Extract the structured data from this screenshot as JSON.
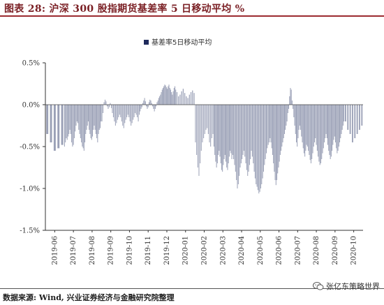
{
  "header": {
    "title": "图表 28:  沪深 300 股指期货基差率 5 日移动平均  %"
  },
  "footer": {
    "source": "数据来源:  Wind, 兴业证券经济与金融研究院整理"
  },
  "watermark": {
    "text": "张亿东策略世界",
    "icon": "wechat-icon"
  },
  "chart_data": {
    "type": "bar",
    "title": "",
    "xlabel": "",
    "ylabel": "",
    "legend": {
      "label": "基差率5日移动平均",
      "placement": "top-center"
    },
    "color": "#9aa0b6",
    "ylim": [
      -1.5,
      0.5
    ],
    "y_ticks": [
      {
        "value": 0.5,
        "label": "0.5%"
      },
      {
        "value": 0.0,
        "label": "0.0%"
      },
      {
        "value": -0.5,
        "label": "-0.5%"
      },
      {
        "value": -1.0,
        "label": "-1.0%"
      },
      {
        "value": -1.5,
        "label": "-1.5%"
      }
    ],
    "x_ticks": [
      "2019-06",
      "2019-07",
      "2019-08",
      "2019-09",
      "2019-10",
      "2019-11",
      "2019-12",
      "2020-01",
      "2020-02",
      "2020-03",
      "2020-04",
      "2020-05",
      "2020-06",
      "2020-07",
      "2020-08",
      "2020-09",
      "2020-10"
    ],
    "monthly_values": [
      [
        -0.35,
        -0.45,
        -0.55,
        -0.52,
        -0.48
      ],
      [
        -0.5,
        -0.45,
        -0.4,
        -0.42,
        -0.38,
        -0.35,
        -0.3,
        -0.35,
        -0.45,
        -0.5,
        -0.48,
        -0.4,
        -0.32,
        -0.25,
        -0.2,
        -0.22,
        -0.3,
        -0.35,
        -0.4,
        -0.45,
        -0.5
      ],
      [
        -0.52,
        -0.55,
        -0.45,
        -0.35,
        -0.3,
        -0.25,
        -0.2,
        -0.3,
        -0.35,
        -0.4,
        -0.42,
        -0.38,
        -0.3,
        -0.25,
        -0.3,
        -0.35,
        -0.4,
        -0.45,
        -0.35,
        -0.3,
        -0.28,
        -0.2
      ],
      [
        -0.2,
        -0.1,
        0.03,
        0.06,
        0.04,
        -0.02,
        -0.05,
        -0.03,
        0.02,
        -0.04,
        -0.1,
        -0.15,
        -0.2,
        -0.25,
        -0.22,
        -0.18,
        -0.15,
        -0.12
      ],
      [
        -0.15,
        -0.2,
        -0.25,
        -0.28,
        -0.22,
        -0.18,
        -0.15,
        -0.12,
        -0.15,
        -0.2,
        -0.25,
        -0.22,
        -0.18,
        -0.15,
        -0.1,
        -0.12,
        -0.15,
        -0.2
      ],
      [
        -0.12,
        -0.08,
        -0.05,
        -0.03,
        0.02,
        0.05,
        0.08,
        0.04,
        -0.02,
        -0.05,
        -0.03,
        0.03,
        0.06,
        0.05,
        0.02,
        -0.02,
        -0.05,
        -0.08,
        -0.05,
        -0.02,
        0.03
      ],
      [
        0.05,
        0.08,
        0.1,
        0.12,
        0.15,
        0.18,
        0.2,
        0.22,
        0.24,
        0.23,
        0.21,
        0.19,
        0.22,
        0.24,
        0.2,
        0.18,
        0.15,
        0.12,
        0.16,
        0.2,
        0.22,
        0.18
      ],
      [
        0.15,
        0.1,
        0.12,
        0.16,
        0.19,
        0.14,
        0.1,
        0.08,
        0.12,
        0.15,
        0.17,
        0.14
      ],
      [
        -0.45,
        -0.6,
        -0.75,
        -0.85,
        -0.7,
        -0.55,
        -0.45,
        -0.4,
        -0.35,
        -0.3,
        -0.28,
        -0.35,
        -0.45,
        -0.5,
        -0.4,
        -0.35
      ],
      [
        -0.5,
        -0.6,
        -0.68,
        -0.75,
        -0.7,
        -0.6,
        -0.55,
        -0.62,
        -0.7,
        -0.78,
        -0.8,
        -0.72,
        -0.65,
        -0.6,
        -0.68,
        -0.75,
        -0.78,
        -0.7,
        -0.62,
        -0.55,
        -0.58,
        -0.65
      ],
      [
        -0.6,
        -0.65,
        -0.72,
        -0.8,
        -0.9,
        -1.0,
        -0.95,
        -0.85,
        -0.75,
        -0.7,
        -0.65,
        -0.6,
        -0.55,
        -0.62,
        -0.7,
        -0.78,
        -0.85,
        -0.8,
        -0.72,
        -0.65
      ],
      [
        -0.55,
        -0.62,
        -0.7,
        -0.8,
        -0.88,
        -0.95,
        -0.98,
        -1.02,
        -1.06,
        -1.04,
        -1.0,
        -0.95,
        -0.88,
        -0.8,
        -0.72,
        -0.65,
        -0.58,
        -0.52,
        -0.48,
        -0.45
      ],
      [
        -0.4,
        -0.45,
        -0.52,
        -0.6,
        -0.7,
        -0.8,
        -0.9,
        -0.96,
        -0.9,
        -0.82,
        -0.75,
        -0.68,
        -0.6,
        -0.55,
        -0.5,
        -0.45,
        -0.4,
        -0.35,
        -0.3,
        -0.25,
        -0.2,
        -0.1
      ],
      [
        -0.05,
        0.1,
        0.2,
        0.18,
        0.05,
        -0.05,
        -0.15,
        -0.25,
        -0.35,
        -0.45,
        -0.5,
        -0.4,
        -0.3,
        -0.25,
        -0.3,
        -0.38,
        -0.45,
        -0.52,
        -0.58,
        -0.62,
        -0.55,
        -0.48
      ],
      [
        -0.5,
        -0.55,
        -0.6,
        -0.66,
        -0.7,
        -0.65,
        -0.58,
        -0.5,
        -0.45,
        -0.4,
        -0.48,
        -0.55,
        -0.62,
        -0.68,
        -0.72,
        -0.7,
        -0.65,
        -0.58,
        -0.52,
        -0.45,
        -0.4
      ],
      [
        -0.35,
        -0.4,
        -0.48,
        -0.55,
        -0.6,
        -0.65,
        -0.62,
        -0.55,
        -0.48,
        -0.42,
        -0.38,
        -0.45,
        -0.52,
        -0.58,
        -0.55,
        -0.5,
        -0.45,
        -0.4,
        -0.35,
        -0.3,
        -0.25,
        -0.2
      ],
      [
        -0.2,
        -0.3,
        -0.35,
        -0.45,
        -0.4,
        -0.35,
        -0.3,
        -0.25
      ]
    ]
  }
}
